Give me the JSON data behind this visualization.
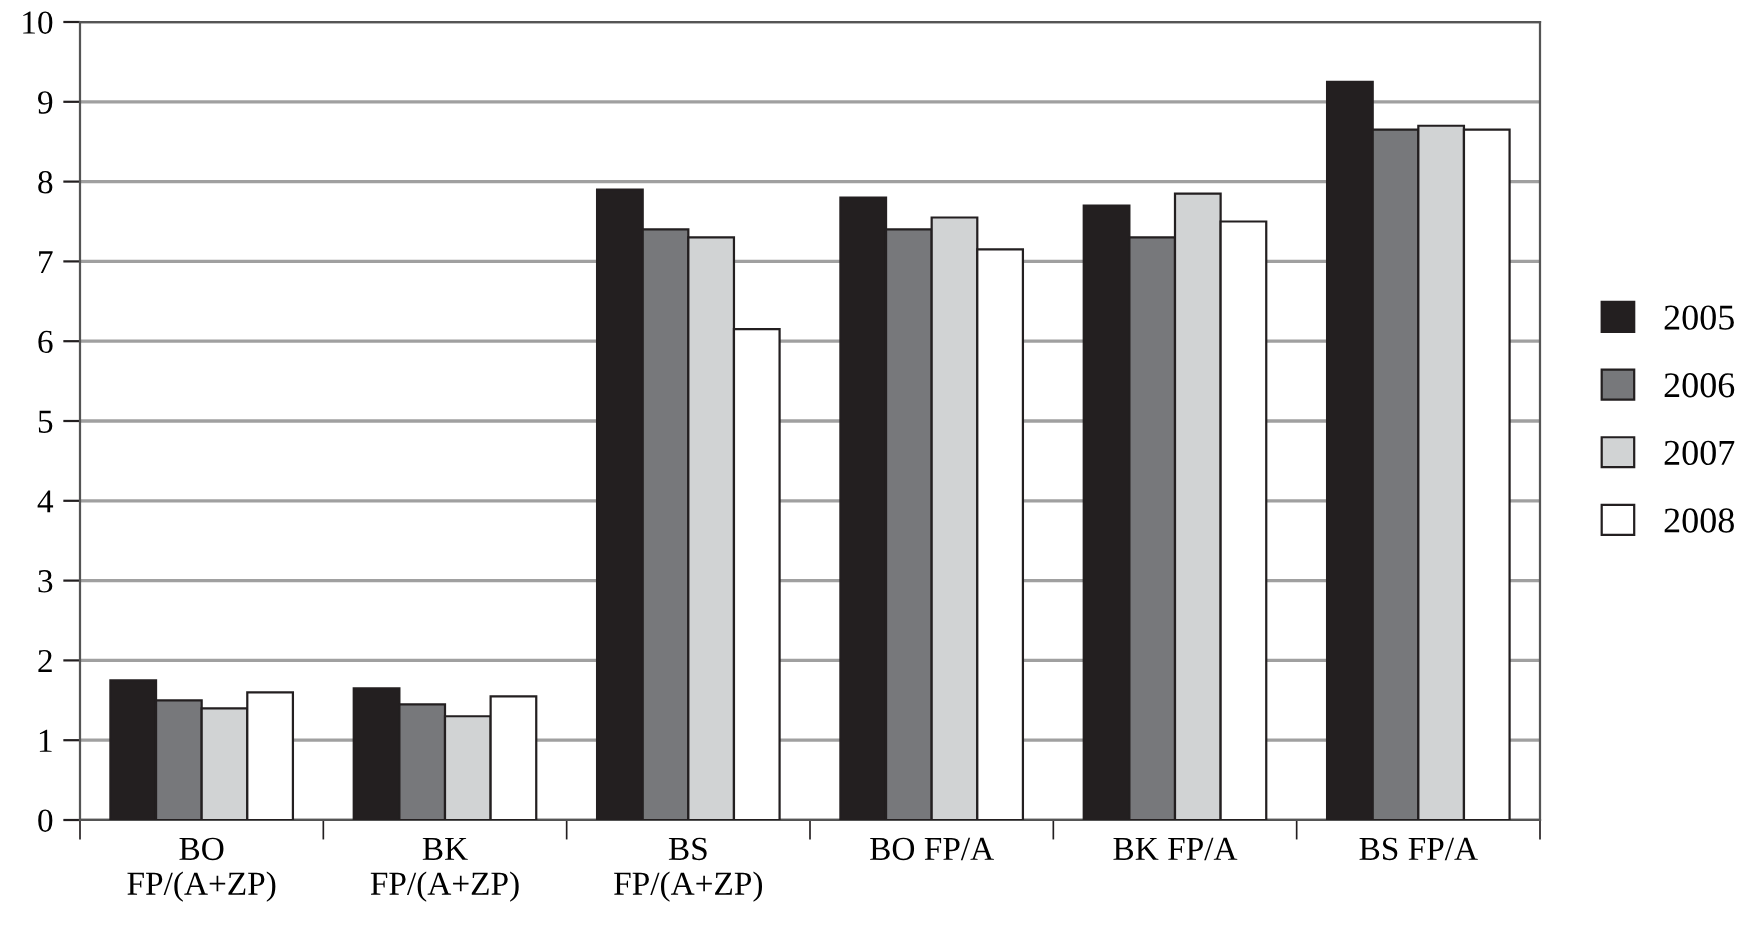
{
  "chart_data": {
    "type": "bar",
    "categories": [
      "BO\nFP/(A+ZP)",
      "BK\nFP/(A+ZP)",
      "BS\nFP/(A+ZP)",
      "BO FP/A",
      "BK FP/A",
      "BS FP/A"
    ],
    "series": [
      {
        "name": "2005",
        "color": "#231f20",
        "values": [
          1.75,
          1.65,
          7.9,
          7.8,
          7.7,
          9.25
        ]
      },
      {
        "name": "2006",
        "color": "#77787b",
        "values": [
          1.5,
          1.45,
          7.4,
          7.4,
          7.3,
          8.65
        ]
      },
      {
        "name": "2007",
        "color": "#d1d3d4",
        "values": [
          1.4,
          1.3,
          7.3,
          7.55,
          7.85,
          8.7
        ]
      },
      {
        "name": "2008",
        "color": "#ffffff",
        "values": [
          1.6,
          1.55,
          6.15,
          7.15,
          7.5,
          8.65
        ]
      }
    ],
    "ylim": [
      0,
      10
    ],
    "yticks": [
      0,
      1,
      2,
      3,
      4,
      5,
      6,
      7,
      8,
      9,
      10
    ],
    "grid": "y",
    "legend": "right"
  }
}
